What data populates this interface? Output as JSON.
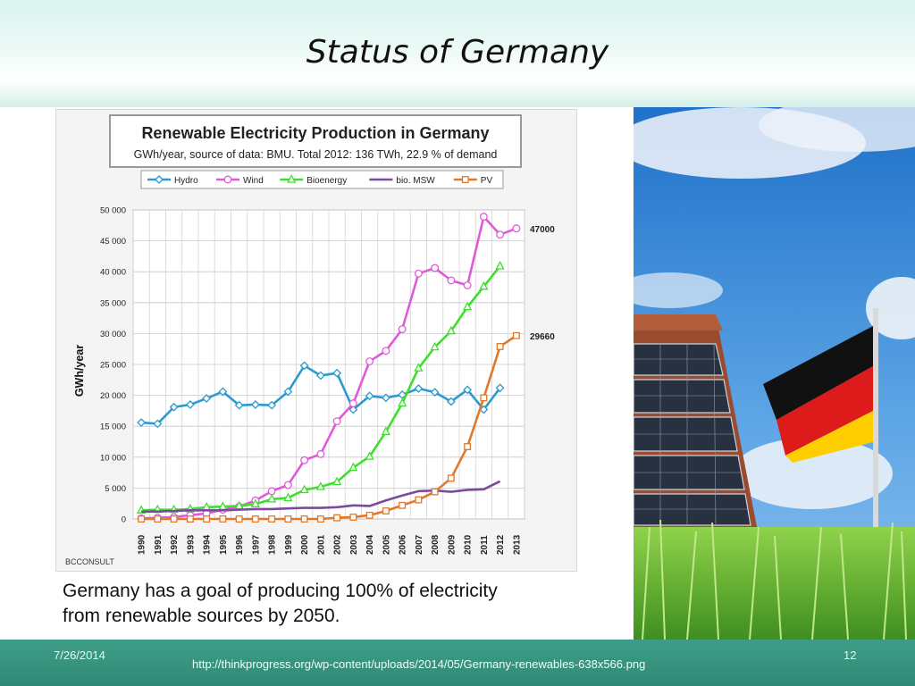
{
  "slide": {
    "title": "Status of Germany",
    "caption_line1": "Germany has a goal of producing 100% of electricity",
    "caption_line2": "from renewable sources by 2050.",
    "footer_date": "7/26/2014",
    "footer_url": "http://thinkprogress.org/wp-content/uploads/2014/05/Germany-renewables-638x566.png",
    "page_number": "12"
  },
  "chart_data": {
    "type": "line",
    "title": "Renewable Electricity Production in Germany",
    "subtitle": "GWh/year, source of data: BMU. Total 2012: 136 TWh, 22.9 % of demand",
    "ylabel": "GWh/year",
    "credit": "BCCONSULT",
    "ylim": [
      0,
      50000
    ],
    "yticks": [
      0,
      5000,
      10000,
      15000,
      20000,
      25000,
      30000,
      35000,
      40000,
      45000,
      50000
    ],
    "ytick_labels": [
      "0",
      "5 000",
      "10 000",
      "15 000",
      "20 000",
      "25 000",
      "30 000",
      "35 000",
      "40 000",
      "45 000",
      "50 000"
    ],
    "grid": true,
    "legend_position": "top",
    "x": [
      "1990",
      "1991",
      "1992",
      "1993",
      "1994",
      "1995",
      "1996",
      "1997",
      "1998",
      "1999",
      "2000",
      "2001",
      "2002",
      "2003",
      "2004",
      "2005",
      "2006",
      "2007",
      "2008",
      "2009",
      "2010",
      "2011",
      "2012",
      "2013"
    ],
    "series": [
      {
        "name": "Hydro",
        "color": "#2a9ad0",
        "marker": "diamond",
        "values": [
          15600,
          15400,
          18100,
          18500,
          19500,
          20600,
          18400,
          18500,
          18400,
          20600,
          24800,
          23200,
          23600,
          17700,
          19900,
          19600,
          20100,
          21100,
          20500,
          19000,
          20900,
          17700,
          21200,
          null
        ]
      },
      {
        "name": "Wind",
        "color": "#e05ad8",
        "marker": "circle",
        "values": [
          100,
          200,
          300,
          600,
          900,
          1500,
          2000,
          3000,
          4500,
          5500,
          9500,
          10500,
          15800,
          18700,
          25500,
          27200,
          30700,
          39700,
          40600,
          38600,
          37800,
          48900,
          46000,
          47000
        ]
      },
      {
        "name": "Bioenergy",
        "color": "#3ce02c",
        "marker": "triangle",
        "values": [
          1400,
          1500,
          1500,
          1600,
          1900,
          2000,
          2100,
          2400,
          3200,
          3400,
          4700,
          5200,
          6000,
          8300,
          10100,
          14100,
          18700,
          24400,
          27800,
          30400,
          34300,
          37600,
          40900,
          null
        ]
      },
      {
        "name": "bio. MSW",
        "color": "#7b4b9b",
        "marker": "none",
        "values": [
          1200,
          1200,
          1300,
          1400,
          1400,
          1400,
          1500,
          1600,
          1600,
          1700,
          1800,
          1800,
          1900,
          2200,
          2100,
          3000,
          3800,
          4500,
          4600,
          4400,
          4700,
          4800,
          6100,
          null
        ]
      },
      {
        "name": "PV",
        "color": "#e0792b",
        "marker": "square",
        "values": [
          0,
          0,
          0,
          0,
          0,
          0,
          0,
          0,
          0,
          0,
          0,
          0,
          200,
          300,
          600,
          1300,
          2200,
          3100,
          4400,
          6600,
          11700,
          19600,
          27900,
          29660
        ]
      }
    ],
    "end_labels": [
      {
        "series": "Wind",
        "text": "47000"
      },
      {
        "series": "PV",
        "text": "29660"
      }
    ]
  },
  "photo": {
    "description_icon": "solar-roof-and-german-flag-photo",
    "flag_colors": [
      "#111111",
      "#dd1b1b",
      "#ffce00"
    ]
  }
}
